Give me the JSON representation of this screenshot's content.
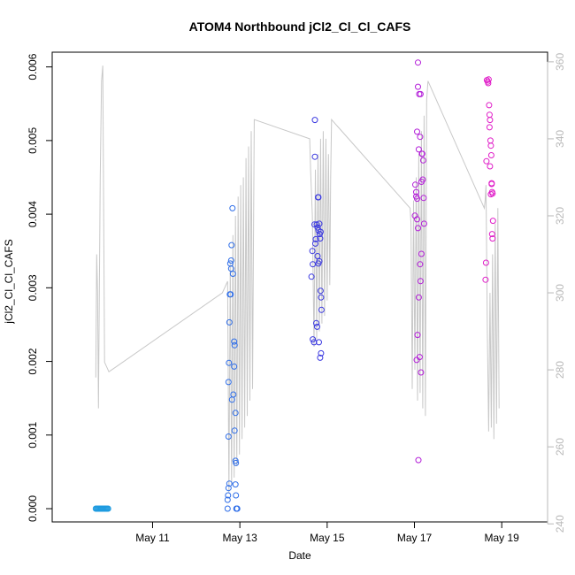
{
  "chart_data": {
    "type": "scatter",
    "title": "ATOM4 Northbound jCl2_Cl_Cl_CAFS",
    "xlabel": "Date",
    "ylabel": "jCl2_Cl_Cl_CAFS",
    "x_start": "2016-05-09",
    "xlim": [
      -0.3,
      11.05
    ],
    "ylim": [
      -0.00018,
      0.0062
    ],
    "x_ticks": [
      {
        "value": 2,
        "label": "May 11"
      },
      {
        "value": 4,
        "label": "May 13"
      },
      {
        "value": 6,
        "label": "May 15"
      },
      {
        "value": 8,
        "label": "May 17"
      },
      {
        "value": 10,
        "label": "May 19"
      }
    ],
    "y_ticks": [
      {
        "value": 0.0,
        "label": "0.000"
      },
      {
        "value": 0.001,
        "label": "0.001"
      },
      {
        "value": 0.002,
        "label": "0.002"
      },
      {
        "value": 0.003,
        "label": "0.003"
      },
      {
        "value": 0.004,
        "label": "0.004"
      },
      {
        "value": 0.005,
        "label": "0.005"
      },
      {
        "value": 0.006,
        "label": "0.006"
      }
    ],
    "y2lim": [
      240.5,
      362.5
    ],
    "y2_ticks": [
      {
        "value": 240,
        "label": "240"
      },
      {
        "value": 260,
        "label": "260"
      },
      {
        "value": 280,
        "label": "280"
      },
      {
        "value": 300,
        "label": "300"
      },
      {
        "value": 320,
        "label": "320"
      },
      {
        "value": 340,
        "label": "340"
      },
      {
        "value": 360,
        "label": "360"
      }
    ],
    "grid": false,
    "line_color": "#c8c8c8",
    "line": [
      [
        0.7,
        278
      ],
      [
        0.72,
        310
      ],
      [
        0.74,
        300
      ],
      [
        0.76,
        270
      ],
      [
        0.78,
        300
      ],
      [
        0.8,
        330
      ],
      [
        0.83,
        355
      ],
      [
        0.86,
        359
      ],
      [
        0.9,
        282
      ],
      [
        1.0,
        279.5
      ],
      [
        3.6,
        300
      ],
      [
        3.72,
        303
      ],
      [
        3.75,
        248
      ],
      [
        3.78,
        308
      ],
      [
        3.81,
        250
      ],
      [
        3.84,
        315
      ],
      [
        3.87,
        252
      ],
      [
        3.9,
        320
      ],
      [
        3.93,
        255
      ],
      [
        3.96,
        325
      ],
      [
        3.99,
        258
      ],
      [
        4.02,
        328
      ],
      [
        4.05,
        262
      ],
      [
        4.08,
        330
      ],
      [
        4.11,
        265
      ],
      [
        4.14,
        335
      ],
      [
        4.17,
        268
      ],
      [
        4.2,
        338
      ],
      [
        4.23,
        272
      ],
      [
        4.26,
        342
      ],
      [
        4.29,
        275
      ],
      [
        4.33,
        345
      ],
      [
        5.6,
        340
      ],
      [
        5.62,
        332
      ],
      [
        5.66,
        320
      ],
      [
        5.7,
        286
      ],
      [
        5.73,
        332
      ],
      [
        5.76,
        288
      ],
      [
        5.79,
        336
      ],
      [
        5.82,
        290
      ],
      [
        5.85,
        340
      ],
      [
        5.88,
        292
      ],
      [
        5.91,
        342
      ],
      [
        5.94,
        294
      ],
      [
        5.97,
        340
      ],
      [
        6.0,
        298
      ],
      [
        6.03,
        336
      ],
      [
        6.06,
        302
      ],
      [
        6.08,
        330
      ],
      [
        6.1,
        345
      ],
      [
        7.9,
        322
      ],
      [
        7.92,
        318
      ],
      [
        7.95,
        275
      ],
      [
        7.98,
        324
      ],
      [
        8.01,
        280
      ],
      [
        8.04,
        330
      ],
      [
        8.07,
        272
      ],
      [
        8.1,
        336
      ],
      [
        8.13,
        274
      ],
      [
        8.16,
        342
      ],
      [
        8.19,
        270
      ],
      [
        8.22,
        346
      ],
      [
        8.25,
        268
      ],
      [
        8.28,
        350
      ],
      [
        8.31,
        355
      ],
      [
        9.6,
        322
      ],
      [
        9.62,
        324
      ],
      [
        9.64,
        328
      ],
      [
        9.67,
        290
      ],
      [
        9.7,
        264
      ],
      [
        9.73,
        300
      ],
      [
        9.76,
        265
      ],
      [
        9.79,
        310
      ],
      [
        9.82,
        262
      ],
      [
        9.85,
        318
      ],
      [
        9.88,
        266
      ],
      [
        9.91,
        322
      ],
      [
        9.94,
        270
      ]
    ],
    "series": [
      {
        "color": "#1e9be0",
        "points": [
          [
            0.7,
            0
          ],
          [
            0.74,
            0
          ],
          [
            0.78,
            0
          ],
          [
            0.82,
            0
          ],
          [
            0.86,
            0
          ],
          [
            0.9,
            0
          ],
          [
            0.94,
            0
          ],
          [
            0.98,
            0
          ],
          [
            0.72,
            0
          ],
          [
            0.76,
            0
          ],
          [
            0.8,
            0
          ],
          [
            0.84,
            0
          ],
          [
            0.88,
            0
          ],
          [
            0.92,
            0
          ],
          [
            0.96,
            0
          ]
        ]
      },
      {
        "color": "#2f6ee8",
        "points": [
          [
            3.72,
            0.0
          ],
          [
            3.72,
            0.00012
          ],
          [
            3.74,
            0.00028
          ],
          [
            3.76,
            0.00034
          ],
          [
            3.73,
            0.00018
          ],
          [
            3.74,
            0.00098
          ],
          [
            3.74,
            0.00172
          ],
          [
            3.75,
            0.00198
          ],
          [
            3.76,
            0.00253
          ],
          [
            3.77,
            0.00291
          ],
          [
            3.79,
            0.00291
          ],
          [
            3.78,
            0.00333
          ],
          [
            3.8,
            0.00337
          ],
          [
            3.81,
            0.00358
          ],
          [
            3.8,
            0.00326
          ],
          [
            3.84,
            0.00319
          ],
          [
            3.83,
            0.00408
          ],
          [
            3.87,
            0.00227
          ],
          [
            3.88,
            0.00222
          ],
          [
            3.87,
            0.00193
          ],
          [
            3.85,
            0.00155
          ],
          [
            3.82,
            0.00148
          ],
          [
            3.88,
            0.00106
          ],
          [
            3.9,
            0.0013
          ],
          [
            3.9,
            0.00065
          ],
          [
            3.91,
            0.00062
          ],
          [
            3.9,
            0.00033
          ],
          [
            3.91,
            0.00018
          ],
          [
            3.92,
            0.0
          ],
          [
            3.93,
            0.0
          ],
          [
            3.94,
            0.0
          ]
        ]
      },
      {
        "color": "#3a38e0",
        "points": [
          [
            5.64,
            0.00315
          ],
          [
            5.66,
            0.0035
          ],
          [
            5.67,
            0.00332
          ],
          [
            5.67,
            0.0023
          ],
          [
            5.7,
            0.00226
          ],
          [
            5.71,
            0.00386
          ],
          [
            5.73,
            0.0036
          ],
          [
            5.72,
            0.00478
          ],
          [
            5.72,
            0.00528
          ],
          [
            5.76,
            0.00386
          ],
          [
            5.78,
            0.00382
          ],
          [
            5.8,
            0.00378
          ],
          [
            5.82,
            0.00387
          ],
          [
            5.75,
            0.00252
          ],
          [
            5.77,
            0.00247
          ],
          [
            5.78,
            0.00343
          ],
          [
            5.8,
            0.00333
          ],
          [
            5.83,
            0.00373
          ],
          [
            5.84,
            0.00367
          ],
          [
            5.79,
            0.00423
          ],
          [
            5.8,
            0.00423
          ],
          [
            5.85,
            0.00376
          ],
          [
            5.82,
            0.00336
          ],
          [
            5.81,
            0.00226
          ],
          [
            5.85,
            0.00296
          ],
          [
            5.86,
            0.00287
          ],
          [
            5.84,
            0.00205
          ],
          [
            5.86,
            0.00211
          ],
          [
            5.87,
            0.0027
          ],
          [
            5.74,
            0.00366
          ]
        ]
      },
      {
        "color": "#b31ed8",
        "points": [
          [
            8.01,
            0.00398
          ],
          [
            8.02,
            0.0044
          ],
          [
            8.04,
            0.0043
          ],
          [
            8.06,
            0.00393
          ],
          [
            8.08,
            0.00381
          ],
          [
            8.05,
            0.00202
          ],
          [
            8.07,
            0.00236
          ],
          [
            8.1,
            0.00287
          ],
          [
            8.12,
            0.00206
          ],
          [
            8.14,
            0.00309
          ],
          [
            8.15,
            0.00185
          ],
          [
            8.13,
            0.00332
          ],
          [
            8.16,
            0.00346
          ],
          [
            8.06,
            0.00512
          ],
          [
            8.08,
            0.00573
          ],
          [
            8.11,
            0.00563
          ],
          [
            8.14,
            0.00563
          ],
          [
            8.1,
            0.00488
          ],
          [
            8.13,
            0.00505
          ],
          [
            8.16,
            0.00444
          ],
          [
            8.18,
            0.00482
          ],
          [
            8.2,
            0.00473
          ],
          [
            8.19,
            0.00447
          ],
          [
            8.21,
            0.00422
          ],
          [
            8.22,
            0.00387
          ],
          [
            8.04,
            0.00424
          ],
          [
            8.06,
            0.00421
          ],
          [
            8.08,
            0.00606
          ],
          [
            8.09,
            0.00066
          ],
          [
            8.17,
            0.00482
          ]
        ]
      },
      {
        "color": "#e01ec8",
        "points": [
          [
            9.63,
            0.00311
          ],
          [
            9.64,
            0.00334
          ],
          [
            9.65,
            0.00472
          ],
          [
            9.66,
            0.00582
          ],
          [
            9.68,
            0.0058
          ],
          [
            9.69,
            0.00578
          ],
          [
            9.71,
            0.00548
          ],
          [
            9.72,
            0.00535
          ],
          [
            9.73,
            0.00528
          ],
          [
            9.72,
            0.00518
          ],
          [
            9.74,
            0.005
          ],
          [
            9.75,
            0.00493
          ],
          [
            9.73,
            0.00465
          ],
          [
            9.76,
            0.0048
          ],
          [
            9.75,
            0.00427
          ],
          [
            9.77,
            0.00441
          ],
          [
            9.78,
            0.0043
          ],
          [
            9.79,
            0.00428
          ],
          [
            9.8,
            0.00391
          ],
          [
            9.78,
            0.00373
          ],
          [
            9.79,
            0.00367
          ],
          [
            9.7,
            0.00583
          ],
          [
            9.77,
            0.00442
          ]
        ]
      }
    ]
  }
}
